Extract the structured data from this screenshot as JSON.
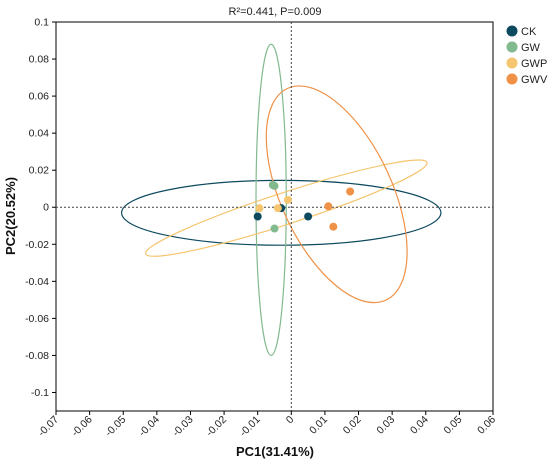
{
  "chart_data": {
    "type": "scatter",
    "title": "R²=0.441, P=0.009",
    "xlabel": "PC1(31.41%)",
    "ylabel": "PC2(20.52%)",
    "xlim": [
      -0.07,
      0.06
    ],
    "ylim": [
      -0.11,
      0.1
    ],
    "x_ticks": [
      "-0.07",
      "-0.06",
      "-0.05",
      "-0.04",
      "-0.03",
      "-0.02",
      "-0.01",
      "0",
      "0.01",
      "0.02",
      "0.03",
      "0.04",
      "0.05",
      "0.06"
    ],
    "y_ticks": [
      "0.1",
      "0.08",
      "0.06",
      "0.04",
      "0.02",
      "0",
      "-0.02",
      "-0.04",
      "-0.06",
      "-0.08",
      "-0.1"
    ],
    "x_tick_values": [
      -0.07,
      -0.06,
      -0.05,
      -0.04,
      -0.03,
      -0.02,
      -0.01,
      0,
      0.01,
      0.02,
      0.03,
      0.04,
      0.05,
      0.06
    ],
    "y_tick_values": [
      0.1,
      0.08,
      0.06,
      0.04,
      0.02,
      0,
      -0.02,
      -0.04,
      -0.06,
      -0.08,
      -0.1
    ],
    "reference_lines": {
      "x": 0,
      "y": 0,
      "style": "dotted"
    },
    "grid": false,
    "legend_position": "right-top",
    "series": [
      {
        "name": "CK",
        "color": "#0d4a5f",
        "points": [
          [
            -0.01,
            -0.005
          ],
          [
            -0.003,
            -0.0005
          ],
          [
            0.005,
            -0.005
          ]
        ],
        "ellipse": {
          "cx": -0.003,
          "cy": -0.003,
          "rx": 0.0475,
          "ry": 0.0175,
          "angle": 0
        }
      },
      {
        "name": "GW",
        "color": "#82b98e",
        "points": [
          [
            -0.0055,
            0.012
          ],
          [
            -0.005,
            0.0115
          ],
          [
            -0.005,
            -0.0115
          ]
        ],
        "ellipse": {
          "cx": -0.006,
          "cy": 0.004,
          "rx": 0.0045,
          "ry": 0.084,
          "angle": 0
        }
      },
      {
        "name": "GWP",
        "color": "#f5c56f",
        "points": [
          [
            -0.0095,
            -0.0005
          ],
          [
            -0.004,
            -0.0005
          ],
          [
            -0.001,
            0.004
          ]
        ],
        "ellipse": {
          "cx": -0.0015,
          "cy": -0.0005,
          "rx": 0.044,
          "ry": 0.0085,
          "angle": 18
        }
      },
      {
        "name": "GWV",
        "color": "#ef9248",
        "points": [
          [
            0.011,
            0.0005
          ],
          [
            0.0125,
            -0.0105
          ],
          [
            0.0175,
            0.0085
          ]
        ],
        "ellipse": {
          "cx": 0.0135,
          "cy": 0.007,
          "rx": 0.0165,
          "ry": 0.063,
          "angle": 25
        }
      }
    ]
  }
}
